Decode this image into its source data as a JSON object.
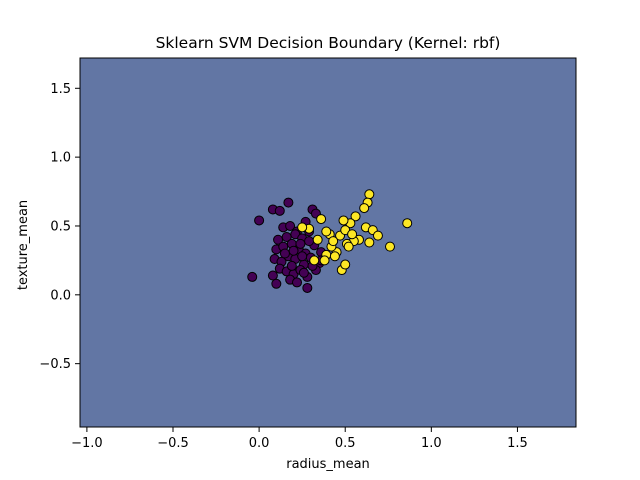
{
  "chart_data": {
    "type": "scatter",
    "title": "Sklearn SVM Decision Boundary (Kernel: rbf)",
    "xlabel": "radius_mean",
    "ylabel": "texture_mean",
    "xlim": [
      -1.04,
      1.84
    ],
    "ylim": [
      -0.96,
      1.72
    ],
    "xticks": [
      -1.0,
      -0.5,
      0.0,
      0.5,
      1.0,
      1.5
    ],
    "xtick_labels": [
      "−1.0",
      "−0.5",
      "0.0",
      "0.5",
      "1.0",
      "1.5"
    ],
    "yticks": [
      -0.5,
      0.0,
      0.5,
      1.0,
      1.5
    ],
    "ytick_labels": [
      "−0.5",
      "0.0",
      "0.5",
      "1.0",
      "1.5"
    ],
    "grid": false,
    "background_region_color": "#6276a4",
    "series": [
      {
        "class": 0,
        "color": "#440154",
        "points": [
          [
            -0.04,
            0.13
          ],
          [
            0.0,
            0.54
          ],
          [
            0.08,
            0.62
          ],
          [
            0.12,
            0.61
          ],
          [
            0.17,
            0.67
          ],
          [
            0.08,
            0.14
          ],
          [
            0.1,
            0.08
          ],
          [
            0.28,
            0.05
          ],
          [
            0.14,
            0.49
          ],
          [
            0.18,
            0.5
          ],
          [
            0.22,
            0.46
          ],
          [
            0.27,
            0.53
          ],
          [
            0.31,
            0.62
          ],
          [
            0.33,
            0.59
          ],
          [
            0.11,
            0.4
          ],
          [
            0.16,
            0.42
          ],
          [
            0.21,
            0.44
          ],
          [
            0.25,
            0.41
          ],
          [
            0.29,
            0.46
          ],
          [
            0.1,
            0.33
          ],
          [
            0.14,
            0.35
          ],
          [
            0.19,
            0.37
          ],
          [
            0.23,
            0.33
          ],
          [
            0.27,
            0.3
          ],
          [
            0.32,
            0.36
          ],
          [
            0.36,
            0.31
          ],
          [
            0.09,
            0.26
          ],
          [
            0.13,
            0.24
          ],
          [
            0.17,
            0.28
          ],
          [
            0.21,
            0.26
          ],
          [
            0.26,
            0.22
          ],
          [
            0.3,
            0.27
          ],
          [
            0.35,
            0.23
          ],
          [
            0.12,
            0.19
          ],
          [
            0.16,
            0.17
          ],
          [
            0.2,
            0.15
          ],
          [
            0.24,
            0.18
          ],
          [
            0.28,
            0.13
          ],
          [
            0.33,
            0.18
          ],
          [
            0.18,
            0.11
          ],
          [
            0.22,
            0.09
          ],
          [
            0.26,
            0.16
          ],
          [
            0.15,
            0.3
          ],
          [
            0.19,
            0.21
          ],
          [
            0.31,
            0.21
          ],
          [
            0.24,
            0.37
          ],
          [
            0.29,
            0.39
          ],
          [
            0.36,
            0.25
          ],
          [
            0.2,
            0.32
          ],
          [
            0.25,
            0.28
          ]
        ]
      },
      {
        "class": 1,
        "color": "#fde725",
        "points": [
          [
            0.64,
            0.73
          ],
          [
            0.63,
            0.67
          ],
          [
            0.61,
            0.63
          ],
          [
            0.86,
            0.52
          ],
          [
            0.56,
            0.57
          ],
          [
            0.53,
            0.52
          ],
          [
            0.49,
            0.54
          ],
          [
            0.62,
            0.49
          ],
          [
            0.66,
            0.47
          ],
          [
            0.69,
            0.43
          ],
          [
            0.76,
            0.35
          ],
          [
            0.64,
            0.38
          ],
          [
            0.58,
            0.4
          ],
          [
            0.55,
            0.39
          ],
          [
            0.51,
            0.37
          ],
          [
            0.47,
            0.43
          ],
          [
            0.5,
            0.47
          ],
          [
            0.45,
            0.31
          ],
          [
            0.41,
            0.44
          ],
          [
            0.42,
            0.35
          ],
          [
            0.39,
            0.29
          ],
          [
            0.36,
            0.55
          ],
          [
            0.34,
            0.4
          ],
          [
            0.38,
            0.25
          ],
          [
            0.32,
            0.25
          ],
          [
            0.48,
            0.18
          ],
          [
            0.5,
            0.22
          ],
          [
            0.43,
            0.39
          ],
          [
            0.39,
            0.46
          ],
          [
            0.29,
            0.48
          ],
          [
            0.25,
            0.49
          ],
          [
            0.52,
            0.35
          ],
          [
            0.44,
            0.28
          ],
          [
            0.54,
            0.44
          ]
        ]
      }
    ]
  }
}
